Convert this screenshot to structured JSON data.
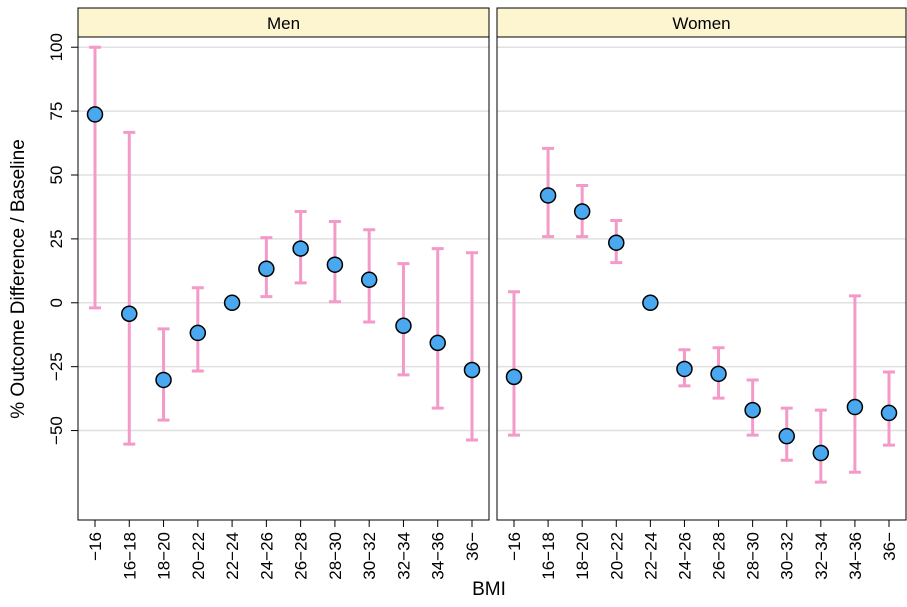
{
  "chart_data": {
    "type": "dot_errorbar",
    "ylabel": "% Outcome Difference / Baseline",
    "xlabel": "BMI",
    "categories": [
      "−16",
      "16−18",
      "18−20",
      "20−22",
      "22−24",
      "24−26",
      "26−28",
      "28−30",
      "30−32",
      "32−34",
      "34−36",
      "36−"
    ],
    "ylim": [
      -85,
      104
    ],
    "yticks": [
      100,
      75,
      50,
      25,
      0,
      {
        "value": -25,
        "label": "−25"
      },
      {
        "value": -50,
        "label": "−50"
      }
    ],
    "grid": true,
    "point_color": "#4aa8f0",
    "error_color": "#f49ac8",
    "strip_color": "#fdf5d0",
    "panels": [
      {
        "title": "Men",
        "values": [
          73.7,
          -4.3,
          -30.2,
          -11.8,
          0,
          13.3,
          21.2,
          14.9,
          9,
          -9,
          -15.7,
          -26.3
        ],
        "lower": [
          -2,
          -55.3,
          -45.9,
          -26.7,
          null,
          2.4,
          7.8,
          0.4,
          -7.5,
          -28.2,
          -41.2,
          -53.7
        ],
        "upper": [
          100,
          66.7,
          -10.2,
          5.9,
          null,
          25.5,
          35.7,
          31.8,
          28.6,
          15.3,
          21.2,
          19.6
        ]
      },
      {
        "title": "Women",
        "values": [
          -29,
          42,
          35.7,
          23.5,
          0,
          -25.9,
          -27.8,
          -42,
          -52.2,
          -58.8,
          -40.8,
          -43.1
        ],
        "lower": [
          -51.8,
          25.9,
          25.9,
          15.7,
          null,
          -32.5,
          -37.3,
          -51.8,
          -61.6,
          -70.2,
          -66.3,
          -55.7
        ],
        "upper": [
          4.3,
          60.4,
          45.9,
          32.2,
          null,
          -18.4,
          -17.6,
          -30.2,
          -41.2,
          -42,
          2.7,
          -27.1
        ]
      }
    ]
  }
}
